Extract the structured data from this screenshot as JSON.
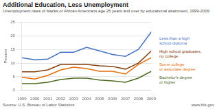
{
  "chart_data": {
    "type": "line",
    "title": "Additional Education, Less Unemployment",
    "subtitle": "Unemployment rates of blacks or African Americans age 25 years and over by educational attainment, 1999-2009",
    "annotations": [
      "Source: U.S. Bureau of Labor Statistics",
      "www.bls.gov"
    ],
    "x": [
      1999,
      2000,
      2001,
      2002,
      2003,
      2004,
      2005,
      2006,
      2007,
      2008,
      2009
    ],
    "series": [
      {
        "name": "Less than a high\nschool diploma",
        "color": "#4472C4",
        "values": [
          12.0,
          11.2,
          11.5,
          14.0,
          14.0,
          15.8,
          14.5,
          13.2,
          12.5,
          15.0,
          21.5
        ]
      },
      {
        "name": "High school graduates,\nno college",
        "color": "#843C0C",
        "values": [
          6.8,
          6.8,
          7.5,
          9.5,
          9.5,
          9.5,
          9.0,
          8.8,
          7.8,
          10.0,
          14.5
        ]
      },
      {
        "name": "Some college\nor associate degree",
        "color": "#E36C09",
        "values": [
          4.8,
          4.2,
          5.5,
          7.5,
          8.5,
          8.0,
          7.0,
          7.0,
          6.0,
          9.5,
          12.0
        ]
      },
      {
        "name": "Bachelor's degree\nor higher",
        "color": "#4E6B1F",
        "values": [
          2.5,
          2.5,
          3.0,
          4.0,
          4.5,
          4.5,
          3.8,
          3.5,
          3.0,
          4.5,
          7.0
        ]
      }
    ],
    "xlim": [
      1999,
      2009
    ],
    "xticks": [
      1999,
      2000,
      2001,
      2002,
      2003,
      2004,
      2005,
      2006,
      2007,
      2008,
      2009
    ],
    "ylim": [
      0,
      25
    ],
    "yticks": [
      0,
      5,
      10,
      15,
      20,
      25
    ],
    "ylabel": "Percent",
    "grid": true,
    "legend": "right"
  }
}
